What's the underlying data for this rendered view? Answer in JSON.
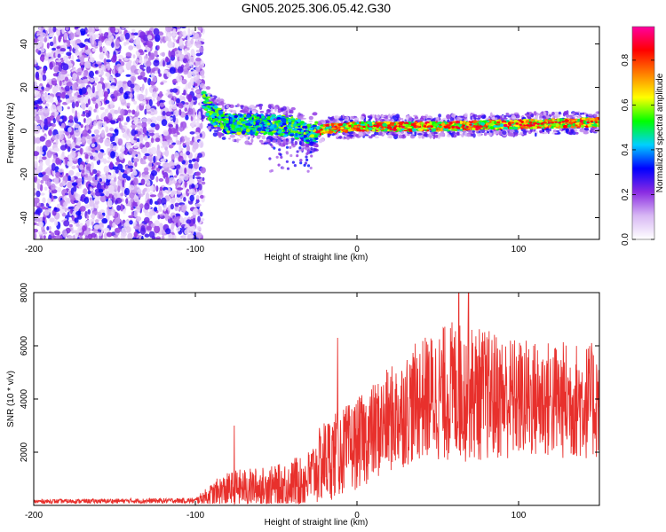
{
  "title": "GN05.2025.306.05.42.G30",
  "chart_data": [
    {
      "type": "heatmap",
      "xlabel": "Height of straight line (km)",
      "ylabel": "Frequency (Hz)",
      "xlim": [
        -200,
        150
      ],
      "ylim": [
        -50,
        48
      ],
      "xticks": [
        -200,
        -100,
        0,
        100
      ],
      "yticks": [
        40,
        20,
        0,
        -20,
        -40
      ],
      "colorbar": {
        "label": "Normalized spectral amplitude",
        "range": [
          0,
          0.95
        ],
        "ticks": [
          0.0,
          0.2,
          0.4,
          0.6,
          0.8
        ],
        "colors": [
          "#ffffff",
          "#d8b8f4",
          "#8a2be2",
          "#0000ff",
          "#00d0ff",
          "#00ff00",
          "#ffff00",
          "#ff8000",
          "#ff0000",
          "#ff00a0"
        ]
      },
      "features": {
        "noise_region_x": [
          -200,
          -95
        ],
        "signal_start_x": -95,
        "signal_center_hz": [
          {
            "x": -95,
            "hz": 15
          },
          {
            "x": -90,
            "hz": 8
          },
          {
            "x": -80,
            "hz": 3
          },
          {
            "x": -60,
            "hz": 3
          },
          {
            "x": -40,
            "hz": 2
          },
          {
            "x": -30,
            "hz": -2
          },
          {
            "x": -20,
            "hz": 1
          },
          {
            "x": 0,
            "hz": 2
          },
          {
            "x": 50,
            "hz": 2
          },
          {
            "x": 100,
            "hz": 3
          },
          {
            "x": 150,
            "hz": 4
          }
        ]
      }
    },
    {
      "type": "line",
      "xlabel": "Height of straight line (km)",
      "ylabel": "SNR (10 * v/v)",
      "xlim": [
        -200,
        150
      ],
      "ylim": [
        0,
        8000
      ],
      "xticks": [
        -200,
        -100,
        0,
        100
      ],
      "yticks": [
        8000,
        6000,
        4000,
        2000
      ],
      "series": [
        {
          "name": "SNR",
          "color": "#e8302c",
          "envelope": [
            {
              "x": -200,
              "mean": 150,
              "amp": 80
            },
            {
              "x": -100,
              "mean": 180,
              "amp": 100
            },
            {
              "x": -85,
              "mean": 500,
              "amp": 600
            },
            {
              "x": -75,
              "mean": 650,
              "amp": 700
            },
            {
              "x": -50,
              "mean": 700,
              "amp": 800
            },
            {
              "x": -30,
              "mean": 1000,
              "amp": 1100
            },
            {
              "x": -20,
              "mean": 1700,
              "amp": 1600
            },
            {
              "x": 0,
              "mean": 2300,
              "amp": 1700
            },
            {
              "x": 20,
              "mean": 3200,
              "amp": 2000
            },
            {
              "x": 40,
              "mean": 4000,
              "amp": 2300
            },
            {
              "x": 60,
              "mean": 4300,
              "amp": 2700
            },
            {
              "x": 100,
              "mean": 4000,
              "amp": 2300
            },
            {
              "x": 150,
              "mean": 3900,
              "amp": 2200
            }
          ],
          "spikes": [
            {
              "x": -76,
              "value": 3000
            },
            {
              "x": -12,
              "value": 6300
            },
            {
              "x": 63,
              "value": 8000
            },
            {
              "x": 69,
              "value": 8000
            }
          ]
        }
      ]
    }
  ]
}
